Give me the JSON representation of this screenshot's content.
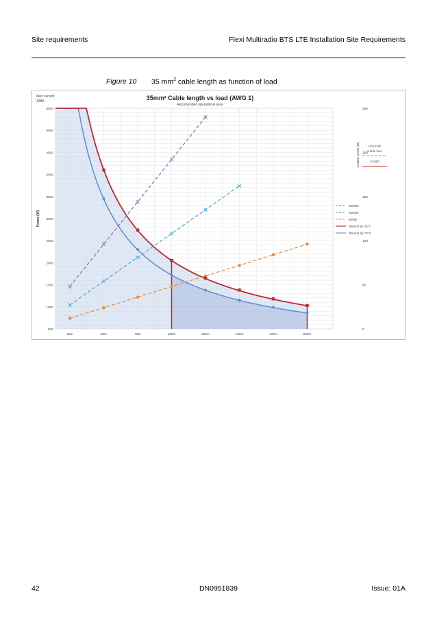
{
  "header": {
    "left": "Site requirements",
    "right": "Flexi Multiradio BTS LTE Installation Site Requirements"
  },
  "figure": {
    "label": "Figure 10",
    "caption_pre": "35 mm",
    "caption_sup": "2",
    "caption_post": " cable length as function of load"
  },
  "footer": {
    "page": "42",
    "doc": "DN0951839",
    "issue": "Issue: 01A"
  },
  "chart_data": {
    "type": "line",
    "title": "35mm² Cable length vs load (AWG 1)",
    "subtitle": "Recomended operational area",
    "corner_label": [
      "Max current",
      "138A"
    ],
    "ylabel": "Power (W)",
    "y2label": "CABLE LOSS (W)",
    "categories": [
      "25m",
      "50m",
      "75m",
      "100m",
      "125m",
      "150m",
      "175m",
      "200m"
    ],
    "ylim": [
      500,
      5500
    ],
    "y_ticks": [
      500,
      1000,
      1500,
      2000,
      2500,
      3000,
      3500,
      4000,
      4500,
      5000,
      5500
    ],
    "y2lim": [
      0,
      250
    ],
    "y2_ticks": [
      0,
      50,
      100,
      150,
      200,
      250
    ],
    "grid": true,
    "length_legend": {
      "title": "LEGEND",
      "loss_label": "Cable loss",
      "length_label": "Length"
    },
    "series": [
      {
        "name": "2000W",
        "axis": "loss",
        "style": "dashed",
        "color": "#8a6aa8",
        "marker": "x",
        "x": [
          "25m",
          "50m",
          "75m",
          "100m",
          "125m"
        ],
        "values": [
          48,
          96,
          144,
          192,
          240
        ]
      },
      {
        "name": "1500W",
        "axis": "loss",
        "style": "dashed",
        "color": "#4aa8c8",
        "marker": "x",
        "x": [
          "25m",
          "50m",
          "75m",
          "100m",
          "125m",
          "150m"
        ],
        "values": [
          27,
          54,
          81,
          108,
          135,
          162
        ]
      },
      {
        "name": "500W",
        "axis": "loss",
        "style": "dashed",
        "color": "#e88a3a",
        "marker": "o",
        "x": [
          "25m",
          "50m",
          "75m",
          "100m",
          "125m",
          "150m",
          "175m",
          "200m"
        ],
        "values": [
          12,
          24,
          36,
          48,
          60,
          72,
          84,
          96
        ]
      },
      {
        "name": "35mm2 @ 25°C",
        "axis": "power",
        "style": "solid",
        "color": "#c0282e",
        "marker": "s",
        "x": [
          "50m",
          "75m",
          "100m",
          "125m",
          "150m",
          "175m",
          "200m"
        ],
        "values": [
          4100,
          2740,
          2050,
          1650,
          1380,
          1180,
          1030
        ]
      },
      {
        "name": "35mm2 @ 70°C",
        "axis": "power",
        "style": "solid",
        "color": "#5b8fcf",
        "marker": "d",
        "x": [
          "50m",
          "75m",
          "100m",
          "125m",
          "150m",
          "175m",
          "200m"
        ],
        "values": [
          3450,
          2300,
          1720,
          1380,
          1150,
          990,
          860
        ]
      }
    ]
  }
}
